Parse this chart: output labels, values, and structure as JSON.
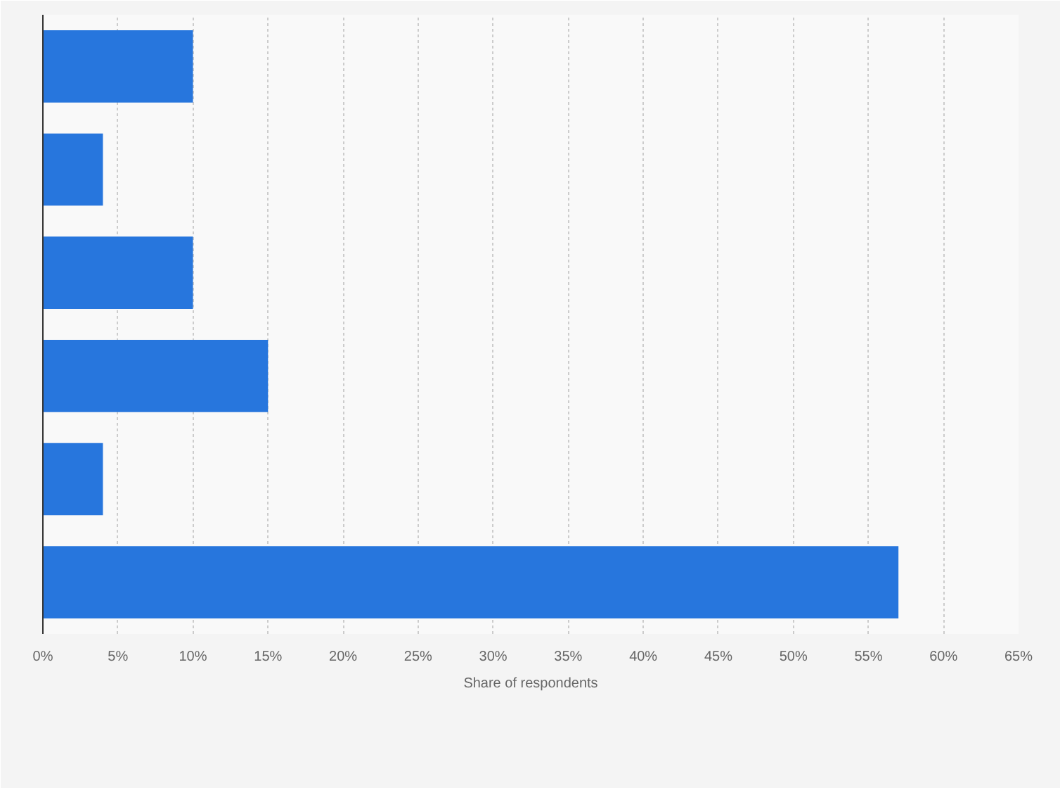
{
  "chart_data": {
    "type": "bar",
    "orientation": "horizontal",
    "xlabel": "Share of respondents",
    "categories": [
      null,
      null,
      null,
      null,
      null,
      null
    ],
    "values": [
      10,
      4,
      10,
      15,
      4,
      57
    ],
    "color": "#2776dd",
    "xlim": [
      0,
      65
    ],
    "xticks": [
      {
        "value": 0,
        "label": "0%"
      },
      {
        "value": 5,
        "label": "5%"
      },
      {
        "value": 10,
        "label": "10%"
      },
      {
        "value": 15,
        "label": "15%"
      },
      {
        "value": 20,
        "label": "20%"
      },
      {
        "value": 25,
        "label": "25%"
      },
      {
        "value": 30,
        "label": "30%"
      },
      {
        "value": 35,
        "label": "35%"
      },
      {
        "value": 40,
        "label": "40%"
      },
      {
        "value": 45,
        "label": "45%"
      },
      {
        "value": 50,
        "label": "50%"
      },
      {
        "value": 55,
        "label": "55%"
      },
      {
        "value": 60,
        "label": "60%"
      },
      {
        "value": 65,
        "label": "65%"
      }
    ],
    "grid": "x",
    "tick_labels": "x"
  }
}
